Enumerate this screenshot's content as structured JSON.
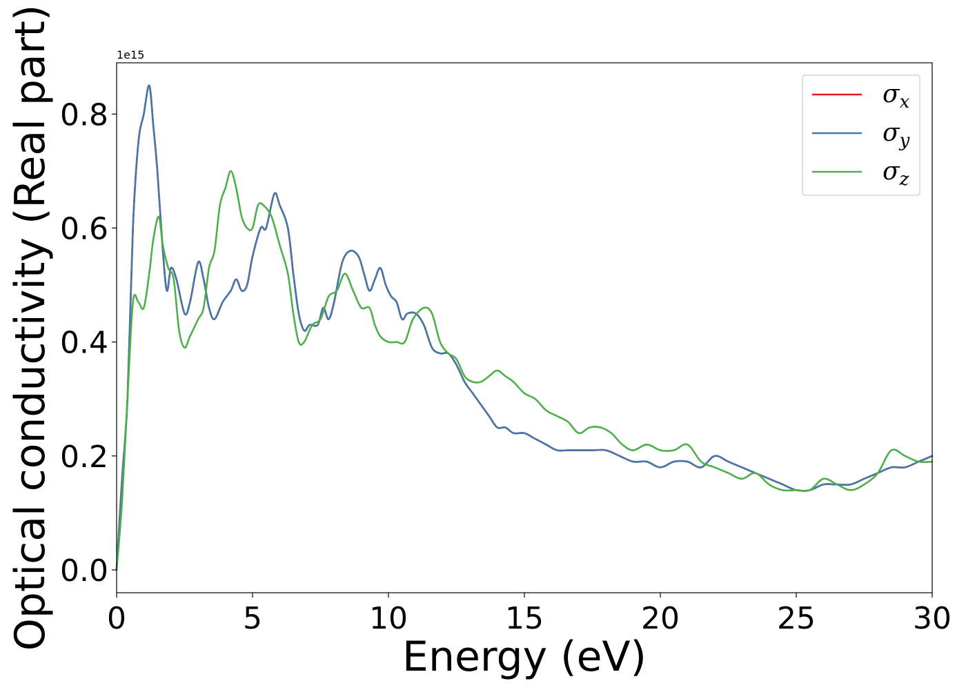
{
  "chart_data": {
    "type": "line",
    "xlabel": "Energy (eV)",
    "ylabel": "Optical conductivity (Real part)",
    "y_offset_label": "1e15",
    "xlim": [
      0,
      30
    ],
    "ylim": [
      -0.04,
      0.89
    ],
    "x_ticks": [
      0,
      5,
      10,
      15,
      20,
      25,
      30
    ],
    "x_tick_labels": [
      "0",
      "5",
      "10",
      "15",
      "20",
      "25",
      "30"
    ],
    "y_ticks": [
      0.0,
      0.2,
      0.4,
      0.6,
      0.8
    ],
    "y_tick_labels": [
      "0.0",
      "0.2",
      "0.4",
      "0.6",
      "0.8"
    ],
    "grid": false,
    "legend_position": "top-right",
    "series": [
      {
        "name": "σx",
        "symbol": "σ",
        "subscript": "x",
        "color": "#e41a1c",
        "points": [
          [
            0,
            0
          ],
          [
            0.2,
            0.16
          ],
          [
            0.4,
            0.3
          ],
          [
            0.6,
            0.6
          ],
          [
            0.8,
            0.75
          ],
          [
            1.0,
            0.8
          ],
          [
            1.2,
            0.85
          ],
          [
            1.35,
            0.78
          ],
          [
            1.5,
            0.7
          ],
          [
            1.7,
            0.56
          ],
          [
            1.85,
            0.49
          ],
          [
            2.0,
            0.53
          ],
          [
            2.2,
            0.51
          ],
          [
            2.5,
            0.45
          ],
          [
            2.7,
            0.47
          ],
          [
            3.0,
            0.54
          ],
          [
            3.2,
            0.51
          ],
          [
            3.4,
            0.46
          ],
          [
            3.6,
            0.44
          ],
          [
            3.9,
            0.47
          ],
          [
            4.2,
            0.49
          ],
          [
            4.4,
            0.51
          ],
          [
            4.6,
            0.49
          ],
          [
            4.8,
            0.5
          ],
          [
            5.0,
            0.55
          ],
          [
            5.3,
            0.6
          ],
          [
            5.5,
            0.6
          ],
          [
            5.8,
            0.66
          ],
          [
            6.0,
            0.64
          ],
          [
            6.3,
            0.6
          ],
          [
            6.5,
            0.52
          ],
          [
            6.7,
            0.45
          ],
          [
            6.9,
            0.42
          ],
          [
            7.1,
            0.43
          ],
          [
            7.4,
            0.43
          ],
          [
            7.6,
            0.46
          ],
          [
            7.8,
            0.44
          ],
          [
            8.0,
            0.47
          ],
          [
            8.3,
            0.54
          ],
          [
            8.6,
            0.56
          ],
          [
            8.9,
            0.55
          ],
          [
            9.1,
            0.52
          ],
          [
            9.3,
            0.49
          ],
          [
            9.5,
            0.51
          ],
          [
            9.7,
            0.53
          ],
          [
            9.9,
            0.5
          ],
          [
            10.1,
            0.48
          ],
          [
            10.3,
            0.47
          ],
          [
            10.5,
            0.44
          ],
          [
            10.7,
            0.45
          ],
          [
            11.0,
            0.45
          ],
          [
            11.3,
            0.43
          ],
          [
            11.6,
            0.39
          ],
          [
            11.9,
            0.38
          ],
          [
            12.2,
            0.38
          ],
          [
            12.5,
            0.36
          ],
          [
            12.8,
            0.33
          ],
          [
            13.1,
            0.31
          ],
          [
            13.4,
            0.29
          ],
          [
            13.7,
            0.27
          ],
          [
            14.0,
            0.25
          ],
          [
            14.3,
            0.25
          ],
          [
            14.6,
            0.24
          ],
          [
            15.0,
            0.24
          ],
          [
            15.4,
            0.23
          ],
          [
            15.8,
            0.22
          ],
          [
            16.2,
            0.21
          ],
          [
            16.6,
            0.21
          ],
          [
            17.0,
            0.21
          ],
          [
            17.5,
            0.21
          ],
          [
            18.0,
            0.21
          ],
          [
            18.5,
            0.2
          ],
          [
            19.0,
            0.19
          ],
          [
            19.5,
            0.19
          ],
          [
            20.0,
            0.18
          ],
          [
            20.5,
            0.19
          ],
          [
            21.0,
            0.19
          ],
          [
            21.5,
            0.18
          ],
          [
            22.0,
            0.2
          ],
          [
            22.5,
            0.19
          ],
          [
            23.0,
            0.18
          ],
          [
            23.5,
            0.17
          ],
          [
            24.0,
            0.16
          ],
          [
            24.5,
            0.15
          ],
          [
            25.0,
            0.14
          ],
          [
            25.5,
            0.14
          ],
          [
            26.0,
            0.15
          ],
          [
            26.5,
            0.15
          ],
          [
            27.0,
            0.15
          ],
          [
            27.5,
            0.16
          ],
          [
            28.0,
            0.17
          ],
          [
            28.5,
            0.18
          ],
          [
            29.0,
            0.18
          ],
          [
            29.5,
            0.19
          ],
          [
            30.0,
            0.2
          ]
        ]
      },
      {
        "name": "σy",
        "symbol": "σ",
        "subscript": "y",
        "color": "#4477aa",
        "points": [
          [
            0,
            0
          ],
          [
            0.2,
            0.16
          ],
          [
            0.4,
            0.3
          ],
          [
            0.6,
            0.6
          ],
          [
            0.8,
            0.75
          ],
          [
            1.0,
            0.8
          ],
          [
            1.2,
            0.85
          ],
          [
            1.35,
            0.78
          ],
          [
            1.5,
            0.7
          ],
          [
            1.7,
            0.56
          ],
          [
            1.85,
            0.49
          ],
          [
            2.0,
            0.53
          ],
          [
            2.2,
            0.51
          ],
          [
            2.5,
            0.45
          ],
          [
            2.7,
            0.47
          ],
          [
            3.0,
            0.54
          ],
          [
            3.2,
            0.51
          ],
          [
            3.4,
            0.46
          ],
          [
            3.6,
            0.44
          ],
          [
            3.9,
            0.47
          ],
          [
            4.2,
            0.49
          ],
          [
            4.4,
            0.51
          ],
          [
            4.6,
            0.49
          ],
          [
            4.8,
            0.5
          ],
          [
            5.0,
            0.55
          ],
          [
            5.3,
            0.6
          ],
          [
            5.5,
            0.6
          ],
          [
            5.8,
            0.66
          ],
          [
            6.0,
            0.64
          ],
          [
            6.3,
            0.6
          ],
          [
            6.5,
            0.52
          ],
          [
            6.7,
            0.45
          ],
          [
            6.9,
            0.42
          ],
          [
            7.1,
            0.43
          ],
          [
            7.4,
            0.43
          ],
          [
            7.6,
            0.46
          ],
          [
            7.8,
            0.44
          ],
          [
            8.0,
            0.47
          ],
          [
            8.3,
            0.54
          ],
          [
            8.6,
            0.56
          ],
          [
            8.9,
            0.55
          ],
          [
            9.1,
            0.52
          ],
          [
            9.3,
            0.49
          ],
          [
            9.5,
            0.51
          ],
          [
            9.7,
            0.53
          ],
          [
            9.9,
            0.5
          ],
          [
            10.1,
            0.48
          ],
          [
            10.3,
            0.47
          ],
          [
            10.5,
            0.44
          ],
          [
            10.7,
            0.45
          ],
          [
            11.0,
            0.45
          ],
          [
            11.3,
            0.43
          ],
          [
            11.6,
            0.39
          ],
          [
            11.9,
            0.38
          ],
          [
            12.2,
            0.38
          ],
          [
            12.5,
            0.36
          ],
          [
            12.8,
            0.33
          ],
          [
            13.1,
            0.31
          ],
          [
            13.4,
            0.29
          ],
          [
            13.7,
            0.27
          ],
          [
            14.0,
            0.25
          ],
          [
            14.3,
            0.25
          ],
          [
            14.6,
            0.24
          ],
          [
            15.0,
            0.24
          ],
          [
            15.4,
            0.23
          ],
          [
            15.8,
            0.22
          ],
          [
            16.2,
            0.21
          ],
          [
            16.6,
            0.21
          ],
          [
            17.0,
            0.21
          ],
          [
            17.5,
            0.21
          ],
          [
            18.0,
            0.21
          ],
          [
            18.5,
            0.2
          ],
          [
            19.0,
            0.19
          ],
          [
            19.5,
            0.19
          ],
          [
            20.0,
            0.18
          ],
          [
            20.5,
            0.19
          ],
          [
            21.0,
            0.19
          ],
          [
            21.5,
            0.18
          ],
          [
            22.0,
            0.2
          ],
          [
            22.5,
            0.19
          ],
          [
            23.0,
            0.18
          ],
          [
            23.5,
            0.17
          ],
          [
            24.0,
            0.16
          ],
          [
            24.5,
            0.15
          ],
          [
            25.0,
            0.14
          ],
          [
            25.5,
            0.14
          ],
          [
            26.0,
            0.15
          ],
          [
            26.5,
            0.15
          ],
          [
            27.0,
            0.15
          ],
          [
            27.5,
            0.16
          ],
          [
            28.0,
            0.17
          ],
          [
            28.5,
            0.18
          ],
          [
            29.0,
            0.18
          ],
          [
            29.5,
            0.19
          ],
          [
            30.0,
            0.2
          ]
        ]
      },
      {
        "name": "σz",
        "symbol": "σ",
        "subscript": "z",
        "color": "#4daf4a",
        "points": [
          [
            0,
            0
          ],
          [
            0.2,
            0.12
          ],
          [
            0.4,
            0.3
          ],
          [
            0.6,
            0.47
          ],
          [
            0.8,
            0.47
          ],
          [
            1.0,
            0.46
          ],
          [
            1.2,
            0.52
          ],
          [
            1.35,
            0.58
          ],
          [
            1.55,
            0.62
          ],
          [
            1.7,
            0.57
          ],
          [
            1.9,
            0.53
          ],
          [
            2.1,
            0.51
          ],
          [
            2.3,
            0.42
          ],
          [
            2.5,
            0.39
          ],
          [
            2.7,
            0.41
          ],
          [
            3.0,
            0.44
          ],
          [
            3.2,
            0.46
          ],
          [
            3.4,
            0.53
          ],
          [
            3.6,
            0.56
          ],
          [
            3.8,
            0.64
          ],
          [
            4.0,
            0.67
          ],
          [
            4.2,
            0.7
          ],
          [
            4.4,
            0.67
          ],
          [
            4.6,
            0.62
          ],
          [
            4.8,
            0.6
          ],
          [
            5.0,
            0.6
          ],
          [
            5.2,
            0.64
          ],
          [
            5.4,
            0.64
          ],
          [
            5.7,
            0.62
          ],
          [
            6.0,
            0.57
          ],
          [
            6.3,
            0.52
          ],
          [
            6.5,
            0.45
          ],
          [
            6.7,
            0.4
          ],
          [
            6.9,
            0.4
          ],
          [
            7.2,
            0.43
          ],
          [
            7.5,
            0.44
          ],
          [
            7.8,
            0.48
          ],
          [
            8.1,
            0.49
          ],
          [
            8.4,
            0.52
          ],
          [
            8.7,
            0.49
          ],
          [
            9.0,
            0.46
          ],
          [
            9.3,
            0.46
          ],
          [
            9.5,
            0.43
          ],
          [
            9.7,
            0.41
          ],
          [
            10.0,
            0.4
          ],
          [
            10.3,
            0.4
          ],
          [
            10.6,
            0.4
          ],
          [
            10.9,
            0.44
          ],
          [
            11.3,
            0.46
          ],
          [
            11.6,
            0.45
          ],
          [
            11.9,
            0.4
          ],
          [
            12.2,
            0.38
          ],
          [
            12.5,
            0.37
          ],
          [
            12.8,
            0.34
          ],
          [
            13.1,
            0.33
          ],
          [
            13.4,
            0.33
          ],
          [
            13.7,
            0.34
          ],
          [
            14.0,
            0.35
          ],
          [
            14.3,
            0.34
          ],
          [
            14.6,
            0.33
          ],
          [
            15.0,
            0.31
          ],
          [
            15.4,
            0.3
          ],
          [
            15.8,
            0.28
          ],
          [
            16.2,
            0.27
          ],
          [
            16.6,
            0.26
          ],
          [
            17.0,
            0.24
          ],
          [
            17.4,
            0.25
          ],
          [
            17.8,
            0.25
          ],
          [
            18.2,
            0.24
          ],
          [
            18.6,
            0.22
          ],
          [
            19.0,
            0.21
          ],
          [
            19.5,
            0.22
          ],
          [
            20.0,
            0.21
          ],
          [
            20.5,
            0.21
          ],
          [
            21.0,
            0.22
          ],
          [
            21.5,
            0.19
          ],
          [
            22.0,
            0.18
          ],
          [
            22.5,
            0.17
          ],
          [
            23.0,
            0.16
          ],
          [
            23.5,
            0.17
          ],
          [
            24.0,
            0.15
          ],
          [
            24.5,
            0.14
          ],
          [
            25.0,
            0.14
          ],
          [
            25.5,
            0.14
          ],
          [
            26.0,
            0.16
          ],
          [
            26.5,
            0.15
          ],
          [
            27.0,
            0.14
          ],
          [
            27.5,
            0.15
          ],
          [
            28.0,
            0.17
          ],
          [
            28.5,
            0.21
          ],
          [
            29.0,
            0.2
          ],
          [
            29.5,
            0.19
          ],
          [
            30.0,
            0.19
          ]
        ]
      }
    ]
  }
}
